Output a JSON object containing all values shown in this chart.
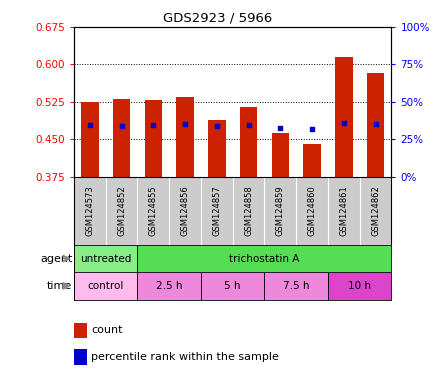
{
  "title": "GDS2923 / 5966",
  "samples": [
    "GSM124573",
    "GSM124852",
    "GSM124855",
    "GSM124856",
    "GSM124857",
    "GSM124858",
    "GSM124859",
    "GSM124860",
    "GSM124861",
    "GSM124862"
  ],
  "bar_values": [
    0.525,
    0.53,
    0.528,
    0.535,
    0.488,
    0.515,
    0.462,
    0.44,
    0.615,
    0.582
  ],
  "bar_bottom": 0.375,
  "blue_dot_values": [
    0.478,
    0.477,
    0.478,
    0.48,
    0.477,
    0.478,
    0.473,
    0.47,
    0.483,
    0.48
  ],
  "ylim": [
    0.375,
    0.675
  ],
  "yticks": [
    0.375,
    0.45,
    0.525,
    0.6,
    0.675
  ],
  "right_yticks": [
    0,
    25,
    50,
    75,
    100
  ],
  "bar_color": "#cc2200",
  "dot_color": "#0000cc",
  "agent_row": [
    {
      "label": "untreated",
      "start": 0,
      "end": 2,
      "color": "#88ee88"
    },
    {
      "label": "trichostatin A",
      "start": 2,
      "end": 10,
      "color": "#55dd55"
    }
  ],
  "time_row": [
    {
      "label": "control",
      "start": 0,
      "end": 2,
      "color": "#ffbbee"
    },
    {
      "label": "2.5 h",
      "start": 2,
      "end": 4,
      "color": "#ee88dd"
    },
    {
      "label": "5 h",
      "start": 4,
      "end": 6,
      "color": "#ee88dd"
    },
    {
      "label": "7.5 h",
      "start": 6,
      "end": 8,
      "color": "#ee88dd"
    },
    {
      "label": "10 h",
      "start": 8,
      "end": 10,
      "color": "#dd44cc"
    }
  ],
  "legend_count_color": "#cc2200",
  "legend_pct_color": "#0000cc",
  "background_color": "#ffffff",
  "plot_bg_color": "#ffffff",
  "tick_label_bg": "#cccccc"
}
